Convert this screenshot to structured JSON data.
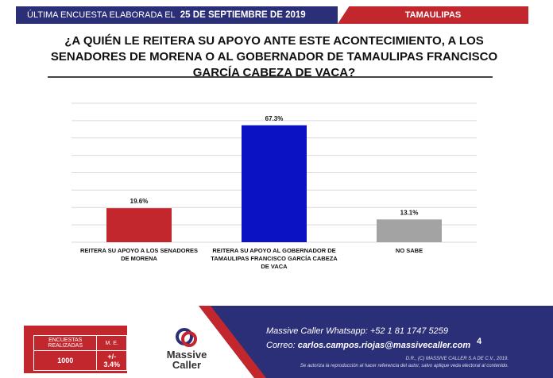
{
  "header": {
    "lead": "ÚLTIMA ENCUESTA ELABORADA EL",
    "date": "25 DE SEPTIEMBRE DE 2019",
    "state": "TAMAULIPAS"
  },
  "chart_data": {
    "type": "bar",
    "title": "¿A QUIÉN LE REITERA SU APOYO ANTE ESTE ACONTECIMIENTO, A LOS SENADORES DE MORENA O AL GOBERNADOR DE TAMAULIPAS FRANCISCO GARCÍA CABEZA DE VACA?",
    "categories": [
      "REITERA SU APOYO A LOS SENADORES DE MORENA",
      "REITERA SU APOYO AL GOBERNADOR DE TAMAULIPAS FRANCISCO GARCÍA CABEZA DE VACA",
      "NO SABE"
    ],
    "values": [
      19.6,
      67.3,
      13.1
    ],
    "value_labels": [
      "19.6%",
      "67.3%",
      "13.1%"
    ],
    "colors": [
      "#c1272d",
      "#0a12c4",
      "#a3a3a3"
    ],
    "ylim": [
      0,
      80
    ],
    "yticks": [
      0,
      10,
      20,
      30,
      40,
      50,
      60,
      70,
      80
    ],
    "grid": true
  },
  "footer": {
    "stats_head": [
      "ENCUESTAS REALIZADAS",
      "M. E."
    ],
    "stats_vals": [
      "1000",
      "+/- 3.4%"
    ],
    "logo": [
      "Massive",
      "Caller"
    ],
    "whatsapp": "Massive Caller Whatsapp: +52 1 81 1747 5259",
    "email_label": "Correo:",
    "email": "carlos.campos.riojas@massivecaller.com",
    "page": "4",
    "rights": "D.R., (C) MASSIVE CALLER S.A DE C.V., 2019.",
    "notice": "Se autoriza la reproducción al hacer referencia del autor, salvo aplique veda electoral al contenido."
  }
}
